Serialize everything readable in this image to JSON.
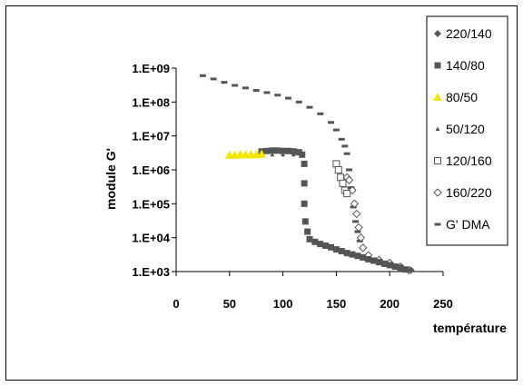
{
  "chart_data": {
    "type": "scatter",
    "title": "",
    "xlabel": "température",
    "ylabel": "module G'",
    "xlim": [
      0,
      250
    ],
    "ylim_log10": [
      3,
      9
    ],
    "yscale": "log",
    "grid": false,
    "legend_position": "right",
    "x_ticks": [
      "0",
      "50",
      "100",
      "150",
      "200",
      "250"
    ],
    "y_ticks": [
      "1.E+03",
      "1.E+04",
      "1.E+05",
      "1.E+06",
      "1.E+07",
      "1.E+08",
      "1.E+09"
    ],
    "series": [
      {
        "name": "220/140",
        "marker": "diamond",
        "color": "#555555",
        "points": [
          [
            220,
            1100
          ]
        ]
      },
      {
        "name": "140/80",
        "marker": "square",
        "color": "#555555",
        "points": [
          [
            80,
            3500000
          ],
          [
            85,
            3600000
          ],
          [
            90,
            3700000
          ],
          [
            95,
            3700000
          ],
          [
            100,
            3600000
          ],
          [
            105,
            3600000
          ],
          [
            110,
            3500000
          ],
          [
            115,
            3300000
          ],
          [
            118,
            2800000
          ],
          [
            120,
            1500000
          ],
          [
            120,
            400000
          ],
          [
            120,
            100000
          ],
          [
            121,
            30000
          ],
          [
            123,
            15000
          ],
          [
            125,
            9000
          ],
          [
            130,
            7500
          ],
          [
            135,
            6500
          ],
          [
            140,
            5800
          ],
          [
            145,
            5200
          ],
          [
            150,
            4500
          ],
          [
            155,
            4000
          ],
          [
            160,
            3500
          ],
          [
            165,
            3200
          ],
          [
            170,
            2900
          ],
          [
            175,
            2600
          ],
          [
            180,
            2300
          ],
          [
            185,
            2100
          ],
          [
            190,
            1900
          ],
          [
            195,
            1700
          ],
          [
            200,
            1550
          ],
          [
            205,
            1400
          ],
          [
            210,
            1300
          ],
          [
            215,
            1150
          ]
        ]
      },
      {
        "name": "80/50",
        "marker": "triangle",
        "color": "#f2e600",
        "points": [
          [
            50,
            2700000
          ],
          [
            55,
            2700000
          ],
          [
            60,
            2800000
          ],
          [
            65,
            2800000
          ],
          [
            70,
            2800000
          ],
          [
            75,
            2800000
          ],
          [
            80,
            2900000
          ]
        ]
      },
      {
        "name": "50/120",
        "marker": "small-triangle",
        "color": "#555555",
        "points": [
          [
            50,
            2600000
          ],
          [
            60,
            2600000
          ],
          [
            70,
            2700000
          ],
          [
            80,
            2700000
          ],
          [
            90,
            2800000
          ],
          [
            100,
            2800000
          ],
          [
            110,
            2800000
          ],
          [
            118,
            2700000
          ]
        ]
      },
      {
        "name": "120/160",
        "marker": "open-square",
        "color": "#555555",
        "points": [
          [
            150,
            1500000
          ],
          [
            152,
            1000000
          ],
          [
            154,
            600000
          ],
          [
            156,
            400000
          ],
          [
            158,
            250000
          ],
          [
            160,
            200000
          ]
        ]
      },
      {
        "name": "160/220",
        "marker": "open-diamond",
        "color": "#555555",
        "points": [
          [
            160,
            600000
          ],
          [
            162,
            500000
          ],
          [
            165,
            250000
          ],
          [
            167,
            100000
          ],
          [
            169,
            50000
          ],
          [
            171,
            20000
          ],
          [
            173,
            10000
          ],
          [
            175,
            5000
          ],
          [
            180,
            3000
          ],
          [
            190,
            2200
          ],
          [
            200,
            1800
          ],
          [
            210,
            1400
          ],
          [
            218,
            1100
          ]
        ]
      },
      {
        "name": "G' DMA",
        "marker": "dash",
        "color": "#555555",
        "points": [
          [
            25,
            600000000
          ],
          [
            35,
            480000000
          ],
          [
            45,
            380000000
          ],
          [
            55,
            310000000
          ],
          [
            65,
            260000000
          ],
          [
            75,
            220000000
          ],
          [
            85,
            190000000
          ],
          [
            95,
            160000000
          ],
          [
            105,
            130000000
          ],
          [
            115,
            100000000
          ],
          [
            125,
            70000000
          ],
          [
            135,
            45000000
          ],
          [
            145,
            25000000
          ],
          [
            150,
            15000000
          ],
          [
            155,
            8000000
          ],
          [
            158,
            5000000
          ],
          [
            160,
            3000000
          ],
          [
            162,
            1000000
          ],
          [
            164,
            300000
          ],
          [
            166,
            80000
          ],
          [
            168,
            30000
          ],
          [
            170,
            15000
          ],
          [
            172,
            8000
          ]
        ]
      }
    ]
  }
}
